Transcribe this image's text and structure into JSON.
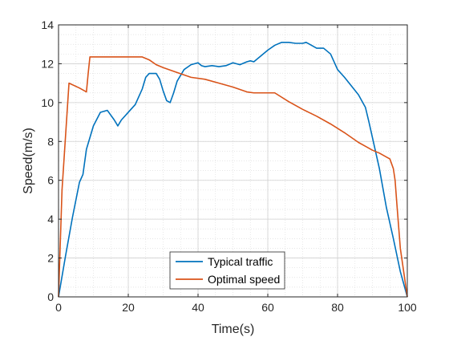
{
  "chart_data": {
    "type": "line",
    "title": "",
    "xlabel": "Time(s)",
    "ylabel": "Speed(m/s)",
    "xlim": [
      0,
      100
    ],
    "ylim": [
      0,
      14
    ],
    "xticks": [
      0,
      20,
      40,
      60,
      80,
      100
    ],
    "yticks": [
      0,
      2,
      4,
      6,
      8,
      10,
      12,
      14
    ],
    "grid": true,
    "minor_grid": true,
    "legend_position": "bottom-center",
    "series": [
      {
        "name": "Typical traffic",
        "color": "#0072BD",
        "x": [
          0,
          2,
          4,
          6,
          7,
          8,
          10,
          12,
          14,
          16,
          17,
          18,
          20,
          22,
          24,
          25,
          26,
          27,
          28,
          29,
          30,
          31,
          32,
          33,
          34,
          36,
          38,
          40,
          41,
          42,
          44,
          46,
          48,
          50,
          52,
          54,
          55,
          56,
          58,
          60,
          62,
          64,
          66,
          68,
          70,
          71,
          72,
          74,
          76,
          78,
          80,
          82,
          84,
          86,
          88,
          89,
          90,
          92,
          94,
          96,
          98,
          100
        ],
        "y": [
          0,
          2.1,
          4.1,
          5.9,
          6.3,
          7.6,
          8.8,
          9.5,
          9.6,
          9.1,
          8.8,
          9.1,
          9.5,
          9.9,
          10.7,
          11.3,
          11.5,
          11.5,
          11.5,
          11.2,
          10.6,
          10.1,
          10.0,
          10.5,
          11.1,
          11.7,
          11.95,
          12.05,
          11.9,
          11.85,
          11.9,
          11.85,
          11.9,
          12.05,
          11.95,
          12.1,
          12.15,
          12.1,
          12.4,
          12.7,
          12.95,
          13.1,
          13.1,
          13.05,
          13.05,
          13.1,
          13.0,
          12.8,
          12.8,
          12.5,
          11.7,
          11.3,
          10.85,
          10.4,
          9.75,
          9.0,
          8.2,
          6.6,
          4.6,
          3.0,
          1.3,
          0
        ]
      },
      {
        "name": "Optimal speed",
        "color": "#D95319",
        "x": [
          0,
          1,
          3,
          6,
          8,
          8.5,
          9,
          12,
          16,
          20,
          24,
          26,
          28,
          30,
          34,
          38,
          42,
          46,
          50,
          54,
          56,
          58,
          62,
          66,
          70,
          74,
          78,
          82,
          86,
          88,
          90,
          92,
          94,
          95,
          96,
          96.5,
          97,
          98,
          100
        ],
        "y": [
          0,
          5.5,
          11.0,
          10.75,
          10.55,
          11.5,
          12.35,
          12.35,
          12.35,
          12.35,
          12.35,
          12.2,
          11.95,
          11.8,
          11.55,
          11.3,
          11.2,
          11.0,
          10.8,
          10.55,
          10.5,
          10.5,
          10.5,
          10.05,
          9.65,
          9.3,
          8.9,
          8.45,
          7.95,
          7.75,
          7.55,
          7.4,
          7.2,
          7.1,
          6.6,
          6.0,
          4.8,
          2.5,
          0
        ]
      }
    ]
  }
}
